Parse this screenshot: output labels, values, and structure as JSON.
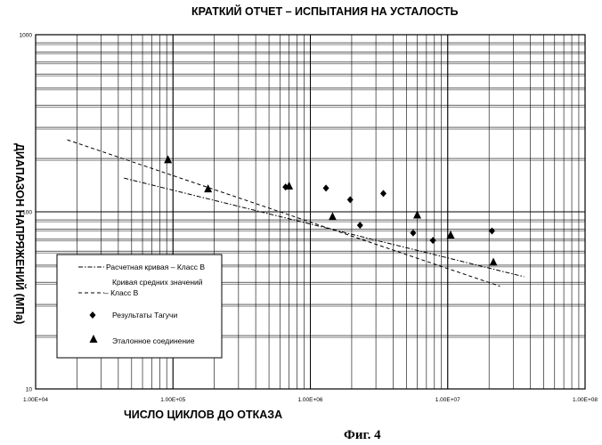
{
  "chart_data": {
    "type": "scatter",
    "title": "КРАТКИЙ ОТЧЕТ – ИСПЫТАНИЯ НА УСТАЛОСТЬ",
    "xlabel": "ЧИСЛО ЦИКЛОВ ДО ОТКАЗА",
    "ylabel": "ДИАПАЗОН НАПРЯЖЕНИЙ (МПа)",
    "x_scale": "log",
    "y_scale": "log",
    "xlim": [
      10000,
      100000000
    ],
    "ylim": [
      10,
      1000
    ],
    "grid": true,
    "x_tick_labels": [
      "1.00E+04",
      "1.00E+05",
      "1.00E+06",
      "1.00E+07",
      "1.00E+08"
    ],
    "y_tick_labels": [
      "10",
      "100",
      "1000"
    ],
    "legend_position": "bottom-left",
    "series": [
      {
        "name": "Расчетная кривая – Класс В",
        "kind": "line",
        "style": "dash-dot",
        "points": [
          [
            44000,
            155
          ],
          [
            36000000,
            43
          ]
        ]
      },
      {
        "name": "Кривая средних значений – Класс В",
        "kind": "line",
        "style": "dashed",
        "points": [
          [
            17000,
            255
          ],
          [
            24000000,
            38
          ]
        ]
      },
      {
        "name": "Результаты Тагучи",
        "kind": "scatter",
        "marker": "diamond",
        "points": [
          [
            660000,
            138
          ],
          [
            1300000,
            136
          ],
          [
            1950000,
            117
          ],
          [
            3400000,
            127
          ],
          [
            2300000,
            84
          ],
          [
            5600000,
            76
          ],
          [
            7800000,
            69
          ],
          [
            21000000,
            78
          ]
        ]
      },
      {
        "name": "Эталонное соединение",
        "kind": "scatter",
        "marker": "triangle",
        "points": [
          [
            92000,
            197
          ],
          [
            180000,
            135
          ],
          [
            700000,
            140
          ],
          [
            1450000,
            94
          ],
          [
            6000000,
            96
          ],
          [
            10500000,
            74
          ],
          [
            21500000,
            52
          ]
        ]
      }
    ]
  },
  "caption": "Фиг. 4"
}
